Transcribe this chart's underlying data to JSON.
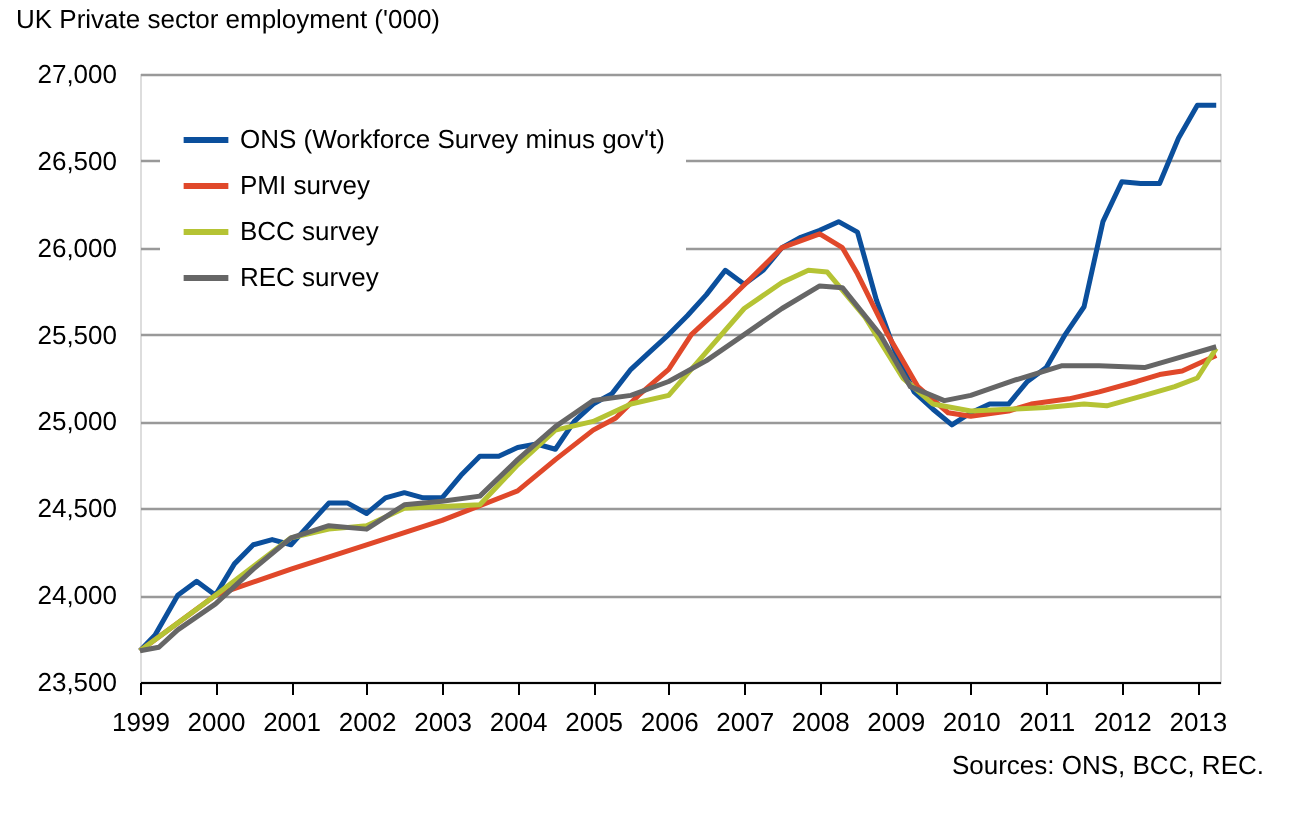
{
  "chart_data": {
    "type": "line",
    "title": "UK Private sector employment ('000)",
    "annotations": [
      "Sources: ONS, BCC, REC."
    ],
    "xlim": [
      1999,
      2013.3
    ],
    "xticks": [
      1999,
      2000,
      2001,
      2002,
      2003,
      2004,
      2005,
      2006,
      2007,
      2008,
      2009,
      2010,
      2011,
      2012,
      2013
    ],
    "ylim": [
      23500,
      27000
    ],
    "yticks": [
      {
        "value": 23500,
        "label": "23,500"
      },
      {
        "value": 24000,
        "label": "24,000"
      },
      {
        "value": 24500,
        "label": "24,500"
      },
      {
        "value": 25000,
        "label": "25,000"
      },
      {
        "value": 25500,
        "label": "25,500"
      },
      {
        "value": 26000,
        "label": "26,000"
      },
      {
        "value": 26500,
        "label": "26,500"
      },
      {
        "value": 27000,
        "label": "27,000"
      }
    ],
    "grid": "y",
    "legend": "top left",
    "marker": "none",
    "line_style": "solid",
    "series": [
      {
        "name": "ONS (Workforce Survey minus gov't)",
        "color": "#0b4f9c",
        "x": [
          1999,
          1999.2,
          1999.5,
          1999.75,
          2000,
          2000.25,
          2000.5,
          2000.75,
          2001,
          2001.25,
          2001.5,
          2001.75,
          2002,
          2002.25,
          2002.5,
          2002.75,
          2003,
          2003.25,
          2003.5,
          2003.75,
          2004,
          2004.25,
          2004.5,
          2004.75,
          2005,
          2005.25,
          2005.5,
          2005.75,
          2006,
          2006.25,
          2006.5,
          2006.75,
          2007,
          2007.25,
          2007.5,
          2007.75,
          2008,
          2008.25,
          2008.5,
          2008.75,
          2009,
          2009.25,
          2009.5,
          2009.75,
          2010,
          2010.25,
          2010.5,
          2010.75,
          2011,
          2011.25,
          2011.5,
          2011.75,
          2012,
          2012.25,
          2012.5,
          2012.75,
          2013,
          2013.25
        ],
        "values": [
          23680,
          23770,
          24000,
          24080,
          24000,
          24180,
          24290,
          24320,
          24290,
          24410,
          24530,
          24530,
          24470,
          24560,
          24590,
          24560,
          24560,
          24690,
          24800,
          24800,
          24850,
          24870,
          24840,
          25000,
          25100,
          25160,
          25300,
          25400,
          25500,
          25610,
          25730,
          25870,
          25790,
          25870,
          26000,
          26060,
          26100,
          26150,
          26090,
          25700,
          25400,
          25170,
          25070,
          24980,
          25050,
          25100,
          25100,
          25230,
          25310,
          25500,
          25660,
          26150,
          26380,
          26370,
          26370,
          26630,
          26820,
          26820
        ]
      },
      {
        "name": "PMI survey",
        "color": "#e0482a",
        "x": [
          1999,
          2000,
          2001,
          2002,
          2003,
          2004,
          2004.5,
          2005,
          2005.3,
          2005.6,
          2006,
          2006.3,
          2006.8,
          2007.5,
          2008,
          2008.3,
          2008.5,
          2008.9,
          2009.3,
          2009.7,
          2010,
          2010.5,
          2010.8,
          2011.3,
          2011.7,
          2012.2,
          2012.5,
          2012.8,
          2013.25
        ],
        "values": [
          23680,
          24000,
          24150,
          24290,
          24430,
          24600,
          24780,
          24950,
          25020,
          25150,
          25300,
          25500,
          25700,
          26000,
          26080,
          26000,
          25850,
          25500,
          25200,
          25050,
          25030,
          25060,
          25100,
          25130,
          25170,
          25230,
          25270,
          25290,
          25380
        ]
      },
      {
        "name": "BCC survey",
        "color": "#b5c334",
        "x": [
          1999,
          2000,
          2001,
          2001.5,
          2002,
          2002.5,
          2003,
          2003.5,
          2004,
          2004.5,
          2005,
          2005.5,
          2006,
          2006.5,
          2007,
          2007.5,
          2007.85,
          2008.1,
          2008.6,
          2009.1,
          2009.5,
          2010,
          2010.5,
          2011,
          2011.5,
          2011.8,
          2012.3,
          2012.7,
          2013,
          2013.25
        ],
        "values": [
          23680,
          24000,
          24330,
          24380,
          24400,
          24500,
          24510,
          24520,
          24750,
          24950,
          25000,
          25100,
          25150,
          25400,
          25650,
          25800,
          25870,
          25860,
          25600,
          25250,
          25100,
          25060,
          25070,
          25080,
          25100,
          25090,
          25150,
          25200,
          25250,
          25420
        ]
      },
      {
        "name": "REC survey",
        "color": "#666666",
        "x": [
          1999,
          1999.25,
          1999.5,
          2000,
          2000.5,
          2001,
          2001.5,
          2002,
          2002.5,
          2003,
          2003.5,
          2004,
          2004.5,
          2005,
          2005.5,
          2006,
          2006.5,
          2007,
          2007.5,
          2008,
          2008.3,
          2008.8,
          2009.2,
          2009.65,
          2010,
          2010.6,
          2011.2,
          2011.7,
          2012.3,
          2012.7,
          2013.25
        ],
        "values": [
          23680,
          23700,
          23800,
          23950,
          24150,
          24330,
          24400,
          24380,
          24520,
          24540,
          24570,
          24780,
          24970,
          25120,
          25150,
          25230,
          25350,
          25500,
          25650,
          25780,
          25770,
          25500,
          25200,
          25120,
          25150,
          25240,
          25320,
          25320,
          25310,
          25360,
          25430
        ]
      }
    ]
  }
}
